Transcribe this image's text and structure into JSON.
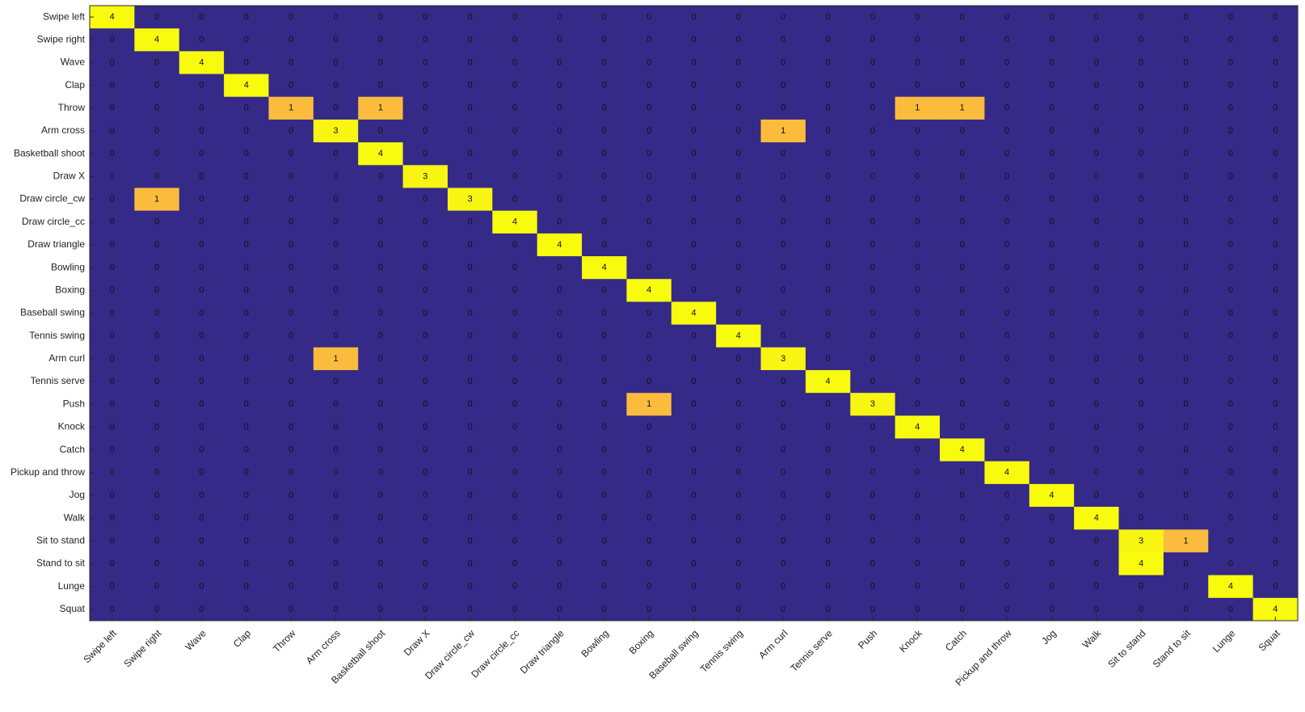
{
  "chart_data": {
    "type": "heatmap",
    "categories": [
      "Swipe left",
      "Swipe right",
      "Wave",
      "Clap",
      "Throw",
      "Arm cross",
      "Basketball shoot",
      "Draw X",
      "Draw circle_cw",
      "Draw circle_cc",
      "Draw triangle",
      "Bowling",
      "Boxing",
      "Baseball swing",
      "Tennis swing",
      "Arm curl",
      "Tennis serve",
      "Push",
      "Knock",
      "Catch",
      "Pickup and throw",
      "Jog",
      "Walk",
      "Sit to stand",
      "Stand to sit",
      "Lunge",
      "Squat"
    ],
    "colors": [
      "#352a87",
      "#fbbc3d",
      "#f6e52a",
      "#f8f512",
      "#f9fb0e"
    ],
    "values": [
      [
        4,
        0,
        0,
        0,
        0,
        0,
        0,
        0,
        0,
        0,
        0,
        0,
        0,
        0,
        0,
        0,
        0,
        0,
        0,
        0,
        0,
        0,
        0,
        0,
        0,
        0,
        0
      ],
      [
        0,
        4,
        0,
        0,
        0,
        0,
        0,
        0,
        0,
        0,
        0,
        0,
        0,
        0,
        0,
        0,
        0,
        0,
        0,
        0,
        0,
        0,
        0,
        0,
        0,
        0,
        0
      ],
      [
        0,
        0,
        4,
        0,
        0,
        0,
        0,
        0,
        0,
        0,
        0,
        0,
        0,
        0,
        0,
        0,
        0,
        0,
        0,
        0,
        0,
        0,
        0,
        0,
        0,
        0,
        0
      ],
      [
        0,
        0,
        0,
        4,
        0,
        0,
        0,
        0,
        0,
        0,
        0,
        0,
        0,
        0,
        0,
        0,
        0,
        0,
        0,
        0,
        0,
        0,
        0,
        0,
        0,
        0,
        0
      ],
      [
        0,
        0,
        0,
        0,
        1,
        0,
        1,
        0,
        0,
        0,
        0,
        0,
        0,
        0,
        0,
        0,
        0,
        0,
        1,
        1,
        0,
        0,
        0,
        0,
        0,
        0,
        0
      ],
      [
        0,
        0,
        0,
        0,
        0,
        3,
        0,
        0,
        0,
        0,
        0,
        0,
        0,
        0,
        0,
        1,
        0,
        0,
        0,
        0,
        0,
        0,
        0,
        0,
        0,
        0,
        0
      ],
      [
        0,
        0,
        0,
        0,
        0,
        0,
        4,
        0,
        0,
        0,
        0,
        0,
        0,
        0,
        0,
        0,
        0,
        0,
        0,
        0,
        0,
        0,
        0,
        0,
        0,
        0,
        0
      ],
      [
        0,
        0,
        0,
        0,
        0,
        0,
        0,
        3,
        0,
        0,
        0,
        0,
        0,
        0,
        0,
        0,
        0,
        0,
        0,
        0,
        0,
        0,
        0,
        0,
        0,
        0,
        0
      ],
      [
        0,
        1,
        0,
        0,
        0,
        0,
        0,
        0,
        3,
        0,
        0,
        0,
        0,
        0,
        0,
        0,
        0,
        0,
        0,
        0,
        0,
        0,
        0,
        0,
        0,
        0,
        0
      ],
      [
        0,
        0,
        0,
        0,
        0,
        0,
        0,
        0,
        0,
        4,
        0,
        0,
        0,
        0,
        0,
        0,
        0,
        0,
        0,
        0,
        0,
        0,
        0,
        0,
        0,
        0,
        0
      ],
      [
        0,
        0,
        0,
        0,
        0,
        0,
        0,
        0,
        0,
        0,
        4,
        0,
        0,
        0,
        0,
        0,
        0,
        0,
        0,
        0,
        0,
        0,
        0,
        0,
        0,
        0,
        0
      ],
      [
        0,
        0,
        0,
        0,
        0,
        0,
        0,
        0,
        0,
        0,
        0,
        4,
        0,
        0,
        0,
        0,
        0,
        0,
        0,
        0,
        0,
        0,
        0,
        0,
        0,
        0,
        0
      ],
      [
        0,
        0,
        0,
        0,
        0,
        0,
        0,
        0,
        0,
        0,
        0,
        0,
        4,
        0,
        0,
        0,
        0,
        0,
        0,
        0,
        0,
        0,
        0,
        0,
        0,
        0,
        0
      ],
      [
        0,
        0,
        0,
        0,
        0,
        0,
        0,
        0,
        0,
        0,
        0,
        0,
        0,
        4,
        0,
        0,
        0,
        0,
        0,
        0,
        0,
        0,
        0,
        0,
        0,
        0,
        0
      ],
      [
        0,
        0,
        0,
        0,
        0,
        0,
        0,
        0,
        0,
        0,
        0,
        0,
        0,
        0,
        4,
        0,
        0,
        0,
        0,
        0,
        0,
        0,
        0,
        0,
        0,
        0,
        0
      ],
      [
        0,
        0,
        0,
        0,
        0,
        1,
        0,
        0,
        0,
        0,
        0,
        0,
        0,
        0,
        0,
        3,
        0,
        0,
        0,
        0,
        0,
        0,
        0,
        0,
        0,
        0,
        0
      ],
      [
        0,
        0,
        0,
        0,
        0,
        0,
        0,
        0,
        0,
        0,
        0,
        0,
        0,
        0,
        0,
        0,
        4,
        0,
        0,
        0,
        0,
        0,
        0,
        0,
        0,
        0,
        0
      ],
      [
        0,
        0,
        0,
        0,
        0,
        0,
        0,
        0,
        0,
        0,
        0,
        0,
        1,
        0,
        0,
        0,
        0,
        3,
        0,
        0,
        0,
        0,
        0,
        0,
        0,
        0,
        0
      ],
      [
        0,
        0,
        0,
        0,
        0,
        0,
        0,
        0,
        0,
        0,
        0,
        0,
        0,
        0,
        0,
        0,
        0,
        0,
        4,
        0,
        0,
        0,
        0,
        0,
        0,
        0,
        0
      ],
      [
        0,
        0,
        0,
        0,
        0,
        0,
        0,
        0,
        0,
        0,
        0,
        0,
        0,
        0,
        0,
        0,
        0,
        0,
        0,
        4,
        0,
        0,
        0,
        0,
        0,
        0,
        0
      ],
      [
        0,
        0,
        0,
        0,
        0,
        0,
        0,
        0,
        0,
        0,
        0,
        0,
        0,
        0,
        0,
        0,
        0,
        0,
        0,
        0,
        4,
        0,
        0,
        0,
        0,
        0,
        0
      ],
      [
        0,
        0,
        0,
        0,
        0,
        0,
        0,
        0,
        0,
        0,
        0,
        0,
        0,
        0,
        0,
        0,
        0,
        0,
        0,
        0,
        0,
        4,
        0,
        0,
        0,
        0,
        0
      ],
      [
        0,
        0,
        0,
        0,
        0,
        0,
        0,
        0,
        0,
        0,
        0,
        0,
        0,
        0,
        0,
        0,
        0,
        0,
        0,
        0,
        0,
        0,
        4,
        0,
        0,
        0,
        0
      ],
      [
        0,
        0,
        0,
        0,
        0,
        0,
        0,
        0,
        0,
        0,
        0,
        0,
        0,
        0,
        0,
        0,
        0,
        0,
        0,
        0,
        0,
        0,
        0,
        3,
        1,
        0,
        0
      ],
      [
        0,
        0,
        0,
        0,
        0,
        0,
        0,
        0,
        0,
        0,
        0,
        0,
        0,
        0,
        0,
        0,
        0,
        0,
        0,
        0,
        0,
        0,
        0,
        4,
        0,
        0,
        0
      ],
      [
        0,
        0,
        0,
        0,
        0,
        0,
        0,
        0,
        0,
        0,
        0,
        0,
        0,
        0,
        0,
        0,
        0,
        0,
        0,
        0,
        0,
        0,
        0,
        0,
        0,
        4,
        0
      ],
      [
        0,
        0,
        0,
        0,
        0,
        0,
        0,
        0,
        0,
        0,
        0,
        0,
        0,
        0,
        0,
        0,
        0,
        0,
        0,
        0,
        0,
        0,
        0,
        0,
        0,
        0,
        4
      ]
    ]
  }
}
